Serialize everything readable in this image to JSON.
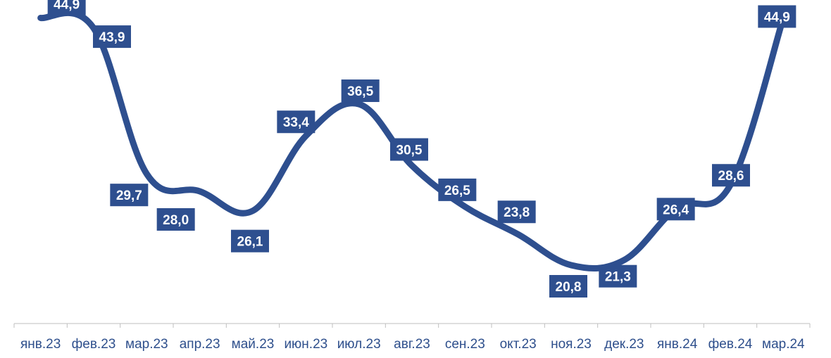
{
  "chart_data": {
    "type": "line",
    "categories": [
      "янв.23",
      "фев.23",
      "мар.23",
      "апр.23",
      "май.23",
      "июн.23",
      "июл.23",
      "авг.23",
      "сен.23",
      "окт.23",
      "ноя.23",
      "дек.23",
      "янв.24",
      "фев.24",
      "мар.24"
    ],
    "values": [
      44.9,
      43.9,
      29.7,
      28.0,
      26.1,
      33.4,
      36.5,
      30.5,
      26.5,
      23.8,
      20.8,
      21.3,
      26.4,
      28.6,
      44.9
    ],
    "data_labels": [
      "44,9",
      "43,9",
      "29,7",
      "28,0",
      "26,1",
      "33,4",
      "36,5",
      "30,5",
      "26,5",
      "23,8",
      "20,8",
      "21,3",
      "26,4",
      "28,6",
      "44,9"
    ],
    "title": "",
    "xlabel": "",
    "ylabel": "",
    "grid": false,
    "legend": "none",
    "colors": {
      "line": "#2e4f8f",
      "label_bg": "#2e4f8f",
      "label_text": "#ffffff",
      "axis": "#bfbfbf",
      "tick_text": "#2e4f8c"
    }
  }
}
